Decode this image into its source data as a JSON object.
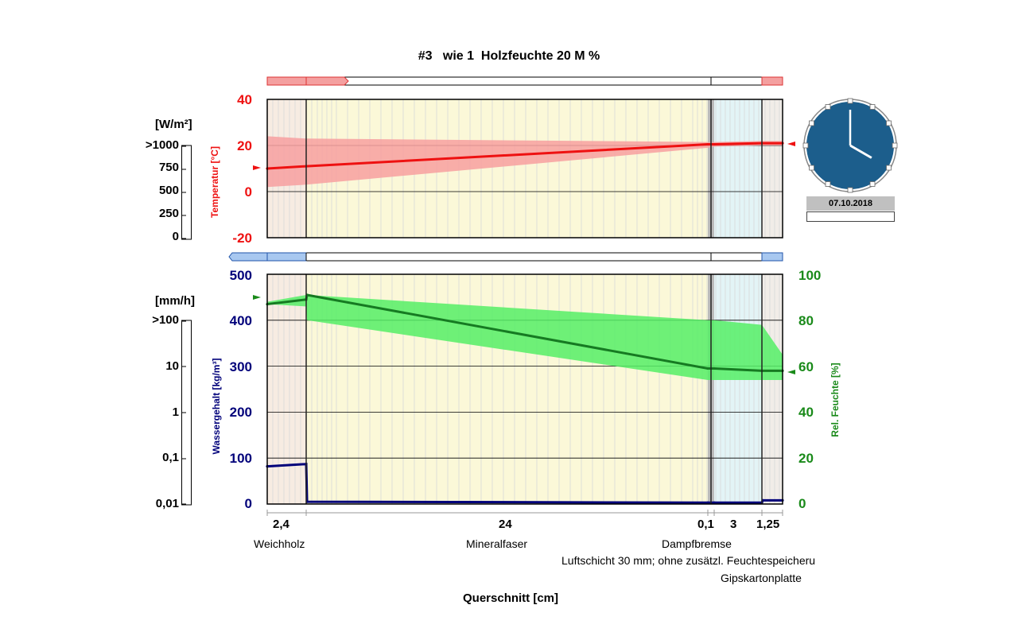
{
  "title": "#3   wie 1  Holzfeuchte 20 M %",
  "flux_scale": {
    "unit": "[W/m²]",
    "ticks": [
      ">1000",
      "750",
      "500",
      "250",
      "0"
    ]
  },
  "rain_scale": {
    "unit": "[mm/h]",
    "ticks": [
      ">100",
      "10",
      "1",
      "0,1",
      "0,01"
    ]
  },
  "clock": {
    "date": "07.10.2018",
    "face_color": "#1c5e8c",
    "hour_hand_hours": 4,
    "minute_hand_minutes": 0
  },
  "colors": {
    "temperature": "#ee1111",
    "temperature_band": "#f7a0a0",
    "humidity": "#1a8a1a",
    "humidity_band": "#55ee66",
    "water_content": "#00007a",
    "plot_bg": "#fbf8d8"
  },
  "layers": [
    {
      "thickness": "2,4",
      "name": "Weichholz"
    },
    {
      "thickness": "24",
      "name": "Mineralfaser"
    },
    {
      "thickness": "0,1",
      "name": "Dampfbremse"
    },
    {
      "thickness": "3",
      "name": "Luftschicht 30 mm; ohne zusätzl. Feuchtespeicheru"
    },
    {
      "thickness": "1,25",
      "name": "Gipskartonplatte"
    }
  ],
  "x_axis_label": "Querschnitt [cm]",
  "chart_data": [
    {
      "type": "line",
      "ylabel": "Temperatur [°C]",
      "ylim": [
        -20,
        40
      ],
      "yticks": [
        "40",
        "20",
        "0",
        "-20"
      ],
      "x": [
        0,
        2.4,
        26.4,
        26.5,
        29.5,
        30.75
      ],
      "series": [
        {
          "values": [
            10,
            11,
            20.5,
            20.5,
            21,
            21
          ]
        }
      ],
      "band_min": [
        2,
        3,
        19,
        19.5,
        20,
        20
      ],
      "band_max": [
        24,
        23,
        21.5,
        21.5,
        22,
        22
      ]
    },
    {
      "type": "line",
      "ylabel": "Wassergehalt [kg/m³]",
      "ylim": [
        0,
        500
      ],
      "yticks": [
        "500",
        "400",
        "300",
        "200",
        "100",
        "0"
      ],
      "x": [
        0,
        2.4,
        2.45,
        26.4,
        26.5,
        29.5,
        29.55,
        30.75
      ],
      "series": [
        {
          "values": [
            82,
            87,
            5,
            3,
            3,
            3,
            8,
            8
          ]
        }
      ]
    },
    {
      "type": "line",
      "ylabel": "Rel. Feuchte [%]",
      "ylim": [
        0,
        100
      ],
      "yticks": [
        "100",
        "80",
        "60",
        "40",
        "20",
        "0"
      ],
      "x": [
        0,
        2.4,
        2.45,
        26.4,
        26.5,
        29.5,
        30.75
      ],
      "series": [
        {
          "values": [
            87,
            89,
            91,
            59,
            59,
            58,
            58
          ]
        }
      ],
      "band_min": [
        87,
        86,
        80,
        54,
        54,
        54,
        54
      ],
      "band_max": [
        88,
        91,
        91,
        80,
        80,
        78,
        65
      ]
    }
  ]
}
